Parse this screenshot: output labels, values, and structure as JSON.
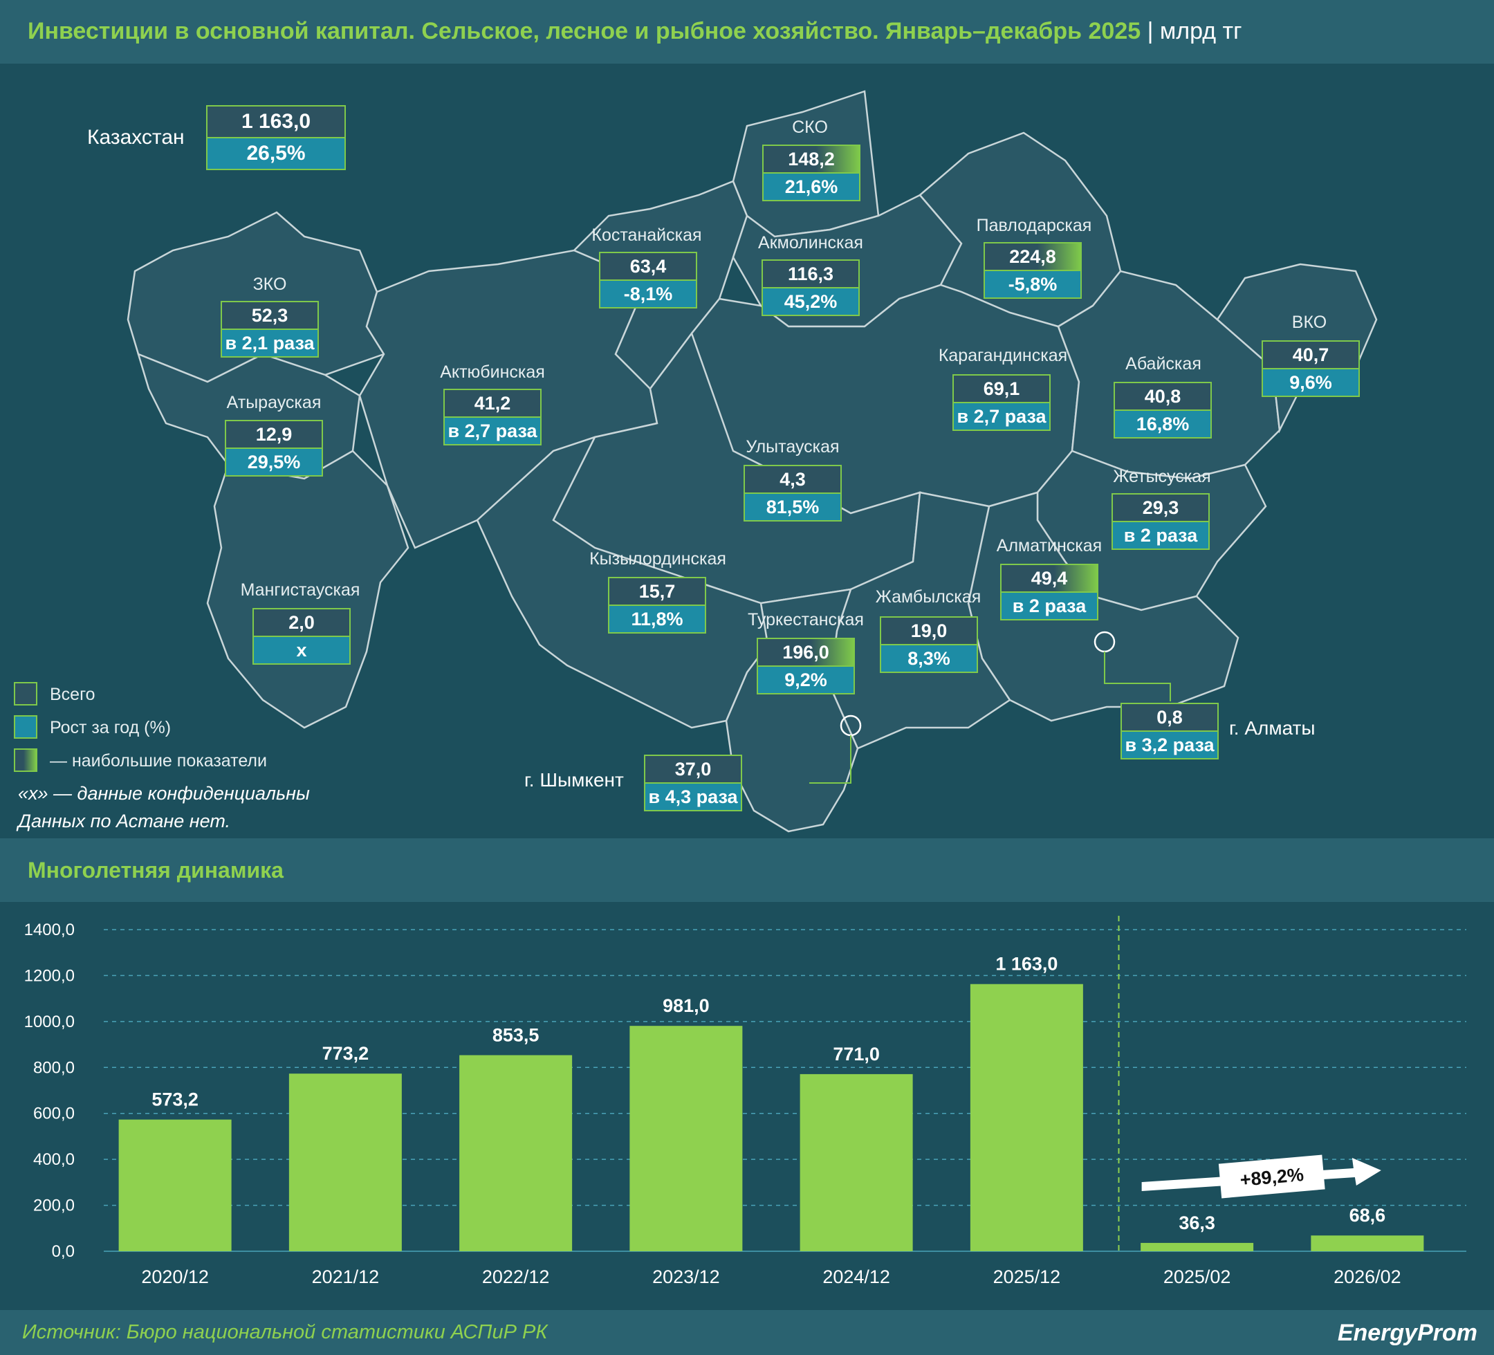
{
  "header": {
    "title": "Инвестиции в основной капитал. Сельское, лесное и рыбное хозяйство. Январь–декабрь 2025",
    "unit": "| млрд тг"
  },
  "kazakhstan": {
    "label": "Казахстан",
    "total": "1 163,0",
    "growth": "26,5%"
  },
  "regions": [
    {
      "id": "sko",
      "name": "СКО",
      "total": "148,2",
      "growth": "21,6%",
      "highlight": true
    },
    {
      "id": "kostanay",
      "name": "Костанайская",
      "total": "63,4",
      "growth": "-8,1%",
      "highlight": false
    },
    {
      "id": "akmola",
      "name": "Акмолинская",
      "total": "116,3",
      "growth": "45,2%",
      "highlight": false
    },
    {
      "id": "pavlodar",
      "name": "Павлодарская",
      "total": "224,8",
      "growth": "-5,8%",
      "highlight": true
    },
    {
      "id": "zko",
      "name": "ЗКО",
      "total": "52,3",
      "growth": "в 2,1 раза",
      "highlight": false
    },
    {
      "id": "aktobe",
      "name": "Актюбинская",
      "total": "41,2",
      "growth": "в 2,7 раза",
      "highlight": false
    },
    {
      "id": "karaganda",
      "name": "Карагандинская",
      "total": "69,1",
      "growth": "в 2,7 раза",
      "highlight": false
    },
    {
      "id": "vko",
      "name": "ВКО",
      "total": "40,7",
      "growth": "9,6%",
      "highlight": false
    },
    {
      "id": "atyrau",
      "name": "Атырауская",
      "total": "12,9",
      "growth": "29,5%",
      "highlight": false
    },
    {
      "id": "abay",
      "name": "Абайская",
      "total": "40,8",
      "growth": "16,8%",
      "highlight": false
    },
    {
      "id": "ulytau",
      "name": "Улытауская",
      "total": "4,3",
      "growth": "81,5%",
      "highlight": false
    },
    {
      "id": "zhetysu",
      "name": "Жетысуская",
      "total": "29,3",
      "growth": "в 2 раза",
      "highlight": false
    },
    {
      "id": "kyzylorda",
      "name": "Кызылординская",
      "total": "15,7",
      "growth": "11,8%",
      "highlight": false
    },
    {
      "id": "almaty_reg",
      "name": "Алматинская",
      "total": "49,4",
      "growth": "в 2 раза",
      "highlight": true
    },
    {
      "id": "mangistau",
      "name": "Мангистауская",
      "total": "2,0",
      "growth": "х",
      "highlight": false
    },
    {
      "id": "zhambyl",
      "name": "Жамбылская",
      "total": "19,0",
      "growth": "8,3%",
      "highlight": false
    },
    {
      "id": "turkestan",
      "name": "Туркестанская",
      "total": "196,0",
      "growth": "9,2%",
      "highlight": true
    }
  ],
  "cities": [
    {
      "id": "almaty",
      "name": "г. Алматы",
      "total": "0,8",
      "growth": "в 3,2 раза"
    },
    {
      "id": "shymkent",
      "name": "г. Шымкент",
      "total": "37,0",
      "growth": "в 4,3 раза"
    }
  ],
  "legend": {
    "total": "Всего",
    "growth": "Рост за год (%)",
    "highest": "— наибольшие показатели"
  },
  "notes": {
    "confidential": "«х» — данные конфиденциальны",
    "astana": "Данных по Астане нет."
  },
  "dynamics_title": "Многолетняя динамика",
  "chart_data": {
    "type": "bar",
    "categories": [
      "2020/12",
      "2021/12",
      "2022/12",
      "2023/12",
      "2024/12",
      "2025/12",
      "2025/02",
      "2026/02"
    ],
    "values": [
      573.2,
      773.2,
      853.5,
      981.0,
      771.0,
      1163.0,
      36.3,
      68.6
    ],
    "value_labels": [
      "573,2",
      "773,2",
      "853,5",
      "981,0",
      "771,0",
      "1 163,0",
      "36,3",
      "68,6"
    ],
    "yticks": [
      "0,0",
      "200,0",
      "400,0",
      "600,0",
      "800,0",
      "1000,0",
      "1200,0",
      "1400,0"
    ],
    "ylim": [
      0,
      1400
    ],
    "grid": true,
    "annotation": "+89,2%",
    "bar_color": "#8fd14f"
  },
  "footer": {
    "source": "Источник: Бюро национальной статистики АСПиР РК",
    "logo": "EnergyProm"
  }
}
